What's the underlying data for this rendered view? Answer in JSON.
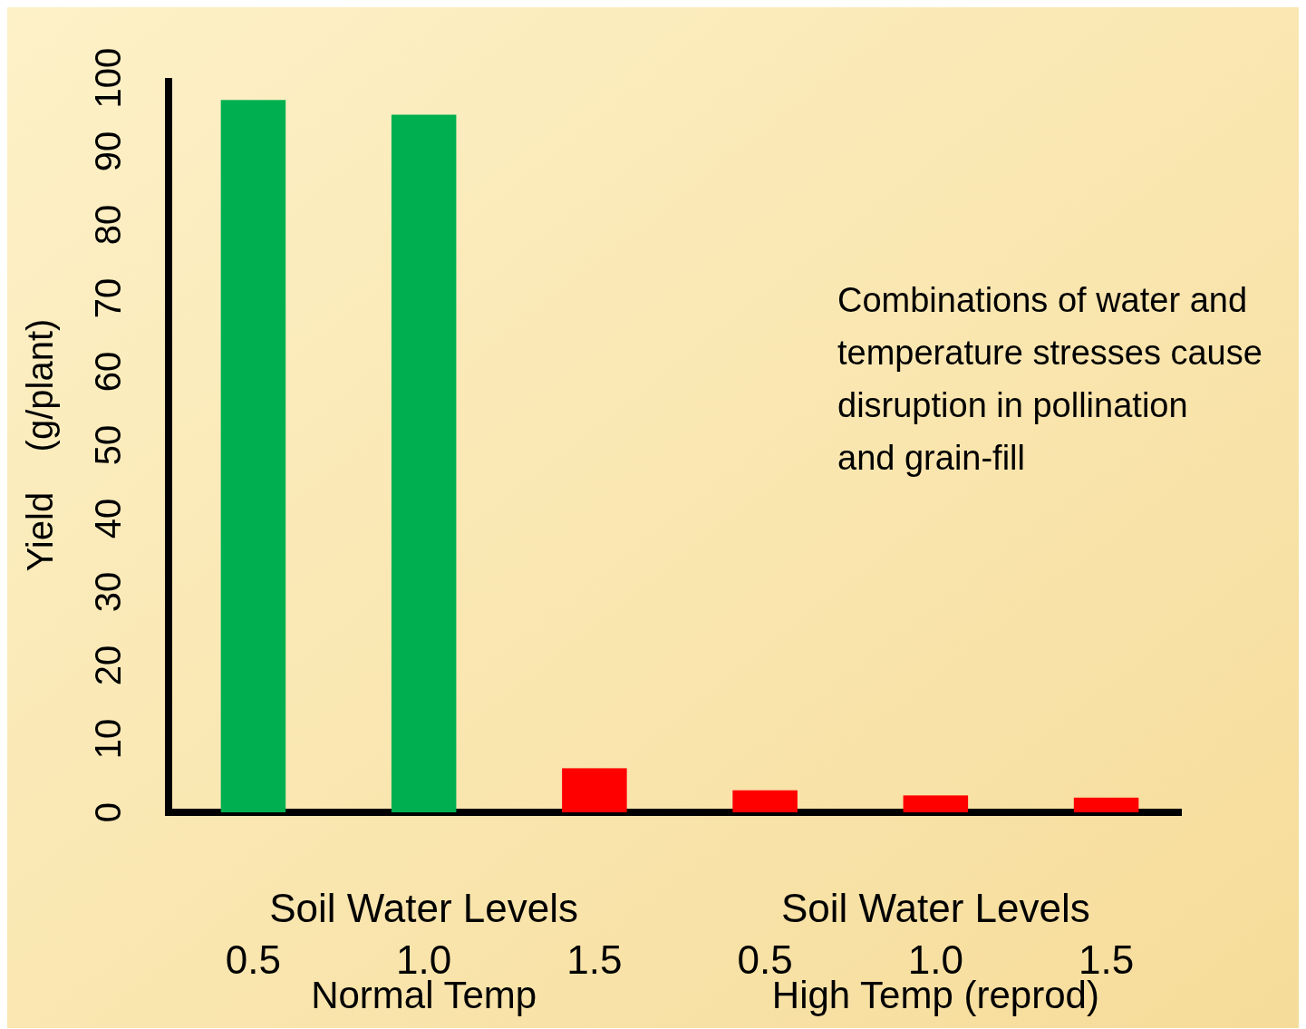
{
  "chart_data": {
    "type": "bar",
    "ylabel": "Yield    (g/plant)",
    "categories": [
      "0.5",
      "1.0",
      "1.5",
      "0.5",
      "1.0",
      "1.5"
    ],
    "values": [
      97,
      95,
      6,
      3,
      2.3,
      2
    ],
    "colors": [
      "#00b050",
      "#00b050",
      "#ff0000",
      "#ff0000",
      "#ff0000",
      "#ff0000"
    ],
    "ylim": [
      0,
      100
    ],
    "yticks": [
      0,
      10,
      20,
      30,
      40,
      50,
      60,
      70,
      80,
      90,
      100
    ],
    "grid": false,
    "annotations": [
      "Soil Water Levels",
      "Soil Water Levels",
      "Normal Temp",
      "High Temp (reprod)",
      "Combinations of water and temperature stresses cause disruption in pollination and grain-fill"
    ]
  }
}
